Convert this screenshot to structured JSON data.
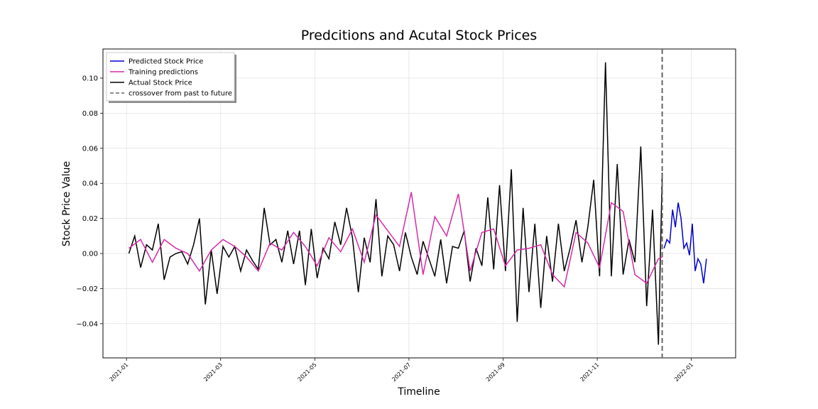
{
  "chart_data": {
    "type": "line",
    "title": "Predcitions and Acutal Stock Prices",
    "xlabel": "Timeline",
    "ylabel": "Stock Price Value",
    "xlim": [
      0.5,
      13.94
    ],
    "ylim": [
      -0.0595,
      0.1166
    ],
    "xticks": [
      {
        "value": 1,
        "label": "2021-01"
      },
      {
        "value": 3,
        "label": "2021-03"
      },
      {
        "value": 5,
        "label": "2021-05"
      },
      {
        "value": 7,
        "label": "2021-07"
      },
      {
        "value": 9,
        "label": "2021-09"
      },
      {
        "value": 11,
        "label": "2021-11"
      },
      {
        "value": 13,
        "label": "2022-01"
      }
    ],
    "yticks": [
      {
        "value": -0.04,
        "label": "−0.04"
      },
      {
        "value": -0.02,
        "label": "−0.02"
      },
      {
        "value": 0,
        "label": "0.00"
      },
      {
        "value": 0.02,
        "label": "0.02"
      },
      {
        "value": 0.04,
        "label": "0.04"
      },
      {
        "value": 0.06,
        "label": "0.06"
      },
      {
        "value": 0.08,
        "label": "0.08"
      },
      {
        "value": 0.1,
        "label": "0.10"
      }
    ],
    "grid": true,
    "legend": "upper-left",
    "series": [
      {
        "name": "Predicted Stock Price",
        "color": "#0000cc",
        "x": [
          12.42,
          12.48,
          12.54,
          12.6,
          12.66,
          12.72,
          12.78,
          12.84,
          12.9,
          12.96,
          13.02,
          13.08,
          13.14,
          13.2,
          13.26,
          13.32
        ],
        "values": [
          0.003,
          0.008,
          0.006,
          0.025,
          0.015,
          0.029,
          0.02,
          0.003,
          0.006,
          -0.001,
          0.017,
          -0.01,
          -0.003,
          -0.006,
          -0.017,
          -0.003
        ]
      },
      {
        "name": "Training predictions",
        "color": "#d62aa8",
        "x": [
          1.05,
          1.3,
          1.55,
          1.8,
          2.05,
          2.3,
          2.55,
          2.8,
          3.05,
          3.3,
          3.55,
          3.8,
          4.05,
          4.3,
          4.55,
          4.8,
          5.05,
          5.3,
          5.55,
          5.8,
          6.05,
          6.3,
          6.55,
          6.8,
          7.05,
          7.3,
          7.55,
          7.8,
          8.05,
          8.3,
          8.55,
          8.8,
          9.05,
          9.3,
          9.55,
          9.8,
          10.05,
          10.3,
          10.55,
          10.8,
          11.05,
          11.3,
          11.55,
          11.8,
          12.05,
          12.3,
          12.38
        ],
        "values": [
          0.003,
          0.008,
          -0.005,
          0.008,
          0.003,
          0.0,
          -0.01,
          0.002,
          0.008,
          0.004,
          -0.002,
          -0.01,
          0.006,
          0.002,
          0.012,
          0.004,
          -0.007,
          0.009,
          0.001,
          0.014,
          -0.005,
          0.022,
          0.013,
          0.004,
          0.035,
          -0.012,
          0.021,
          0.01,
          0.034,
          -0.01,
          0.012,
          0.014,
          -0.007,
          0.002,
          0.003,
          0.005,
          -0.012,
          -0.019,
          0.012,
          0.006,
          -0.008,
          0.029,
          0.024,
          -0.012,
          -0.017,
          -0.003,
          -0.002
        ]
      },
      {
        "name": "Actual Stock Price",
        "color": "#000000",
        "x": [
          1.05,
          1.175,
          1.3,
          1.425,
          1.55,
          1.675,
          1.8,
          1.925,
          2.05,
          2.175,
          2.3,
          2.425,
          2.55,
          2.675,
          2.8,
          2.925,
          3.05,
          3.175,
          3.3,
          3.425,
          3.55,
          3.675,
          3.8,
          3.925,
          4.05,
          4.175,
          4.3,
          4.425,
          4.55,
          4.675,
          4.8,
          4.925,
          5.05,
          5.175,
          5.3,
          5.425,
          5.55,
          5.675,
          5.8,
          5.925,
          6.05,
          6.175,
          6.3,
          6.425,
          6.55,
          6.675,
          6.8,
          6.925,
          7.05,
          7.175,
          7.3,
          7.425,
          7.55,
          7.675,
          7.8,
          7.925,
          8.05,
          8.175,
          8.3,
          8.425,
          8.55,
          8.675,
          8.8,
          8.925,
          9.05,
          9.175,
          9.3,
          9.425,
          9.55,
          9.675,
          9.8,
          9.925,
          10.05,
          10.175,
          10.3,
          10.425,
          10.55,
          10.675,
          10.8,
          10.925,
          11.05,
          11.175,
          11.3,
          11.425,
          11.55,
          11.675,
          11.8,
          11.925,
          12.05,
          12.175,
          12.3,
          12.38
        ],
        "values": [
          0.0,
          0.01,
          -0.008,
          0.005,
          0.002,
          0.017,
          -0.015,
          -0.002,
          0.0,
          0.001,
          -0.006,
          0.005,
          0.02,
          -0.029,
          0.002,
          -0.023,
          0.004,
          -0.002,
          0.004,
          -0.01,
          0.002,
          -0.004,
          -0.009,
          0.026,
          0.005,
          0.008,
          -0.005,
          0.013,
          -0.006,
          0.013,
          -0.018,
          0.014,
          -0.014,
          0.003,
          -0.003,
          0.018,
          0.005,
          0.026,
          0.009,
          -0.022,
          0.009,
          -0.005,
          0.031,
          -0.013,
          0.01,
          0.005,
          -0.01,
          0.012,
          -0.002,
          -0.012,
          0.007,
          -0.003,
          -0.013,
          0.008,
          -0.017,
          0.004,
          0.003,
          0.013,
          -0.016,
          0.003,
          -0.007,
          0.032,
          -0.009,
          0.039,
          -0.01,
          0.048,
          -0.039,
          0.026,
          -0.022,
          0.017,
          -0.031,
          0.01,
          -0.016,
          0.017,
          -0.01,
          0.003,
          0.019,
          -0.005,
          0.015,
          0.042,
          -0.013,
          0.109,
          -0.013,
          0.051,
          -0.012,
          0.008,
          -0.005,
          0.061,
          -0.03,
          0.025,
          -0.052,
          0.046
        ]
      }
    ],
    "vlines": [
      {
        "name": "crossover from past to future",
        "color": "#666666",
        "x": 12.38
      }
    ]
  }
}
